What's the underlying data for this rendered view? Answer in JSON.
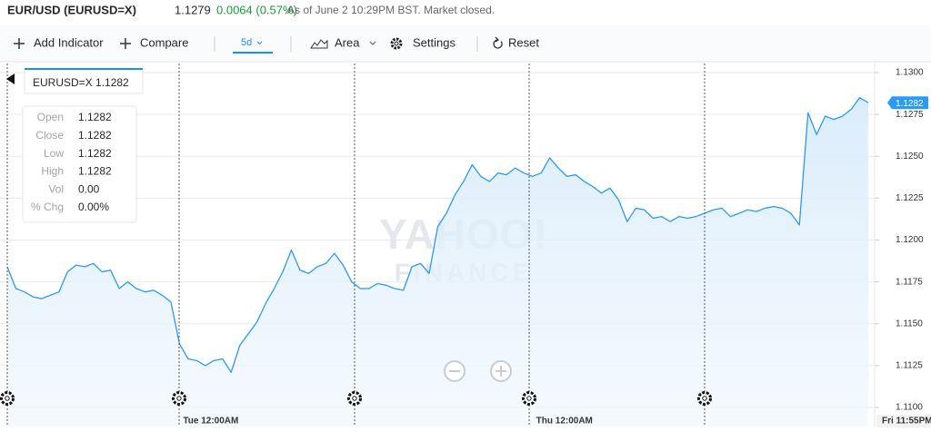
{
  "header": {
    "symbol": "EUR/USD (EURUSD=X)",
    "price": "1.1279",
    "change": "0.0064 (0.57%)",
    "note": "As of June 2 10:29PM BST. Market closed."
  },
  "toolbar": {
    "add_indicator": "Add Indicator",
    "compare": "Compare",
    "range": "5d",
    "chart_type": "Area",
    "settings": "Settings",
    "reset": "Reset"
  },
  "tooltip": {
    "title": "EURUSD=X 1.1282",
    "rows": [
      [
        "Open",
        "1.1282"
      ],
      [
        "Close",
        "1.1282"
      ],
      [
        "Low",
        "1.1282"
      ],
      [
        "High",
        "1.1282"
      ],
      [
        "Vol",
        "0.00"
      ],
      [
        "% Chg",
        "0.00%"
      ]
    ]
  },
  "watermark": [
    "YAHOO!",
    "FINANCE"
  ],
  "chart_data": {
    "type": "area",
    "color": "#2b9af3",
    "grid": true,
    "categories": [
      null,
      null,
      null,
      null,
      null,
      null,
      null,
      null,
      null,
      null,
      null,
      null,
      null,
      null,
      null,
      null,
      null,
      null,
      null,
      null,
      "Tue 12:00AM",
      null,
      null,
      null,
      null,
      null,
      null,
      null,
      null,
      null,
      null,
      null,
      null,
      null,
      null,
      null,
      null,
      null,
      null,
      null,
      null,
      null,
      null,
      null,
      null,
      null,
      null,
      null,
      null,
      null,
      null,
      null,
      null,
      null,
      null,
      null,
      null,
      null,
      null,
      null,
      null,
      "Thu 12:00AM",
      null,
      null,
      null,
      null,
      null,
      null,
      null,
      null,
      null,
      null,
      null,
      null,
      null,
      null,
      null,
      null,
      null,
      null,
      null,
      null,
      null,
      null,
      null,
      null,
      null,
      null,
      null,
      null,
      null,
      null,
      null,
      null,
      null,
      null,
      null,
      null,
      null,
      null,
      "Fri 11:55PM"
    ],
    "values": [
      1.1184,
      1.1171,
      1.1169,
      1.1166,
      1.1165,
      1.1167,
      1.1169,
      1.1181,
      1.1185,
      1.1184,
      1.1186,
      1.1181,
      1.1182,
      1.1171,
      1.1175,
      1.1171,
      1.1169,
      1.117,
      1.1167,
      1.1163,
      1.1138,
      1.1129,
      1.1128,
      1.1125,
      1.1128,
      1.1129,
      1.1121,
      1.1137,
      1.1144,
      1.1151,
      1.1162,
      1.1171,
      1.1181,
      1.1194,
      1.1182,
      1.118,
      1.1184,
      1.1186,
      1.1192,
      1.1185,
      1.1175,
      1.1171,
      1.1171,
      1.1174,
      1.1173,
      1.1171,
      1.117,
      1.1184,
      1.1186,
      1.118,
      1.1208,
      1.1216,
      1.1227,
      1.1235,
      1.1245,
      1.1238,
      1.1235,
      1.124,
      1.1239,
      1.1243,
      1.124,
      1.1238,
      1.124,
      1.1249,
      1.1243,
      1.1238,
      1.1239,
      1.1235,
      1.1232,
      1.1228,
      1.1231,
      1.1224,
      1.1211,
      1.1219,
      1.1218,
      1.1213,
      1.1214,
      1.1211,
      1.1214,
      1.1213,
      1.1214,
      1.1216,
      1.1218,
      1.1219,
      1.1214,
      1.1216,
      1.1218,
      1.1217,
      1.1219,
      1.122,
      1.1219,
      1.1216,
      1.1209,
      1.1276,
      1.1263,
      1.1274,
      1.1272,
      1.1274,
      1.1278,
      1.1285,
      1.1282
    ],
    "ylim": [
      1.11,
      1.13
    ],
    "yticks": [
      {
        "value": 1.11,
        "label": "1.1100"
      },
      {
        "value": 1.1125,
        "label": "1.1125"
      },
      {
        "value": 1.115,
        "label": "1.1150"
      },
      {
        "value": 1.1175,
        "label": "1.1175"
      },
      {
        "value": 1.12,
        "label": "1.1200"
      },
      {
        "value": 1.1225,
        "label": "1.1225"
      },
      {
        "value": 1.125,
        "label": "1.1250"
      },
      {
        "value": 1.1275,
        "label": "1.1275"
      },
      {
        "value": 1.13,
        "label": "1.1300"
      }
    ]
  }
}
